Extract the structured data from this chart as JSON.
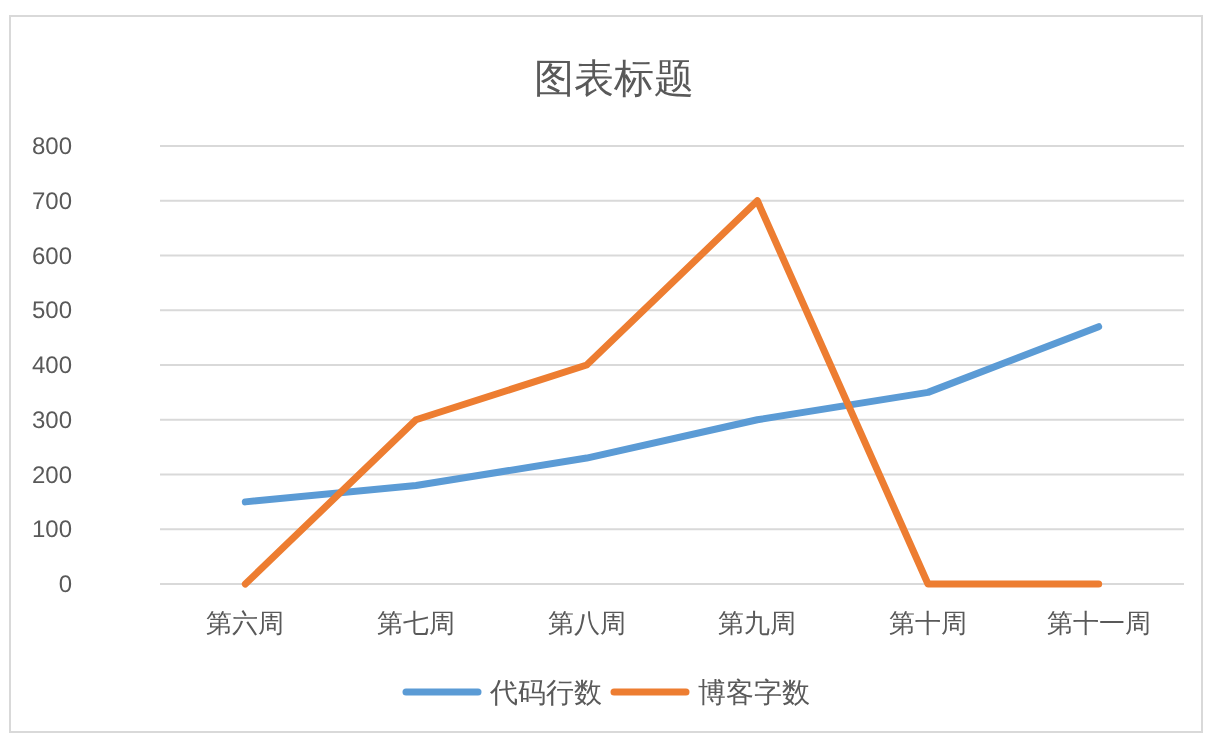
{
  "chart_data": {
    "type": "line",
    "title": "图表标题",
    "categories": [
      "第六周",
      "第七周",
      "第八周",
      "第九周",
      "第十周",
      "第十一周"
    ],
    "series": [
      {
        "name": "代码行数",
        "color": "#5b9bd5",
        "values": [
          150,
          180,
          230,
          300,
          350,
          470
        ]
      },
      {
        "name": "博客字数",
        "color": "#ed7d31",
        "values": [
          0,
          300,
          400,
          700,
          0,
          0
        ]
      }
    ],
    "ylim": [
      0,
      800
    ],
    "yticks": [
      0,
      100,
      200,
      300,
      400,
      500,
      600,
      700,
      800
    ],
    "grid": "y",
    "legend": "bottom"
  }
}
